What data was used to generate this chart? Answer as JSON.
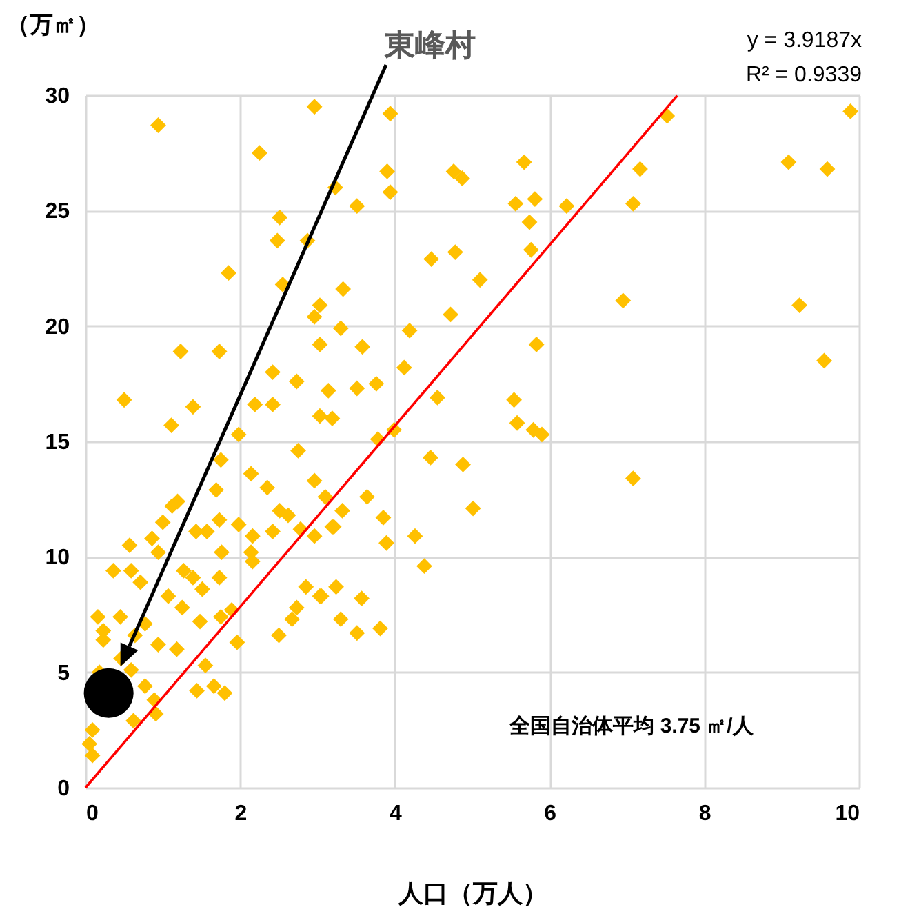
{
  "chart_data": {
    "type": "scatter",
    "xlabel": "人口（万人）",
    "ylabel": "（万㎡）",
    "xlim": [
      0,
      10
    ],
    "xticks": [
      0,
      2,
      4,
      6,
      8,
      10
    ],
    "ylim": [
      0,
      30
    ],
    "yticks": [
      0,
      5,
      10,
      15,
      20,
      25,
      30
    ],
    "grid": true,
    "marker": "diamond",
    "annotations": [
      "東峰村",
      "y = 3.9187x",
      "R² = 0.9339",
      "全国自治体平均  3.75 ㎡/人"
    ],
    "series": [
      {
        "color": "#ffc000",
        "x": [
          0.94,
          2.96,
          2.25,
          3.23,
          2.51,
          2.48,
          2.87,
          1.85,
          2.55,
          3.33,
          3.03,
          2.96,
          3.3,
          3.03,
          1.23,
          1.73,
          2.42,
          2.73,
          3.14,
          0.5,
          1.39,
          2.19,
          2.42,
          3.03,
          3.19,
          1.11,
          1.98,
          3.94,
          3.9,
          3.94,
          3.51,
          4.76,
          4.87,
          5.67,
          5.56,
          5.81,
          6.22,
          5.74,
          5.76,
          4.47,
          4.78,
          5.1,
          4.72,
          4.19,
          3.58,
          4.12,
          5.83,
          3.76,
          3.51,
          4.55,
          5.54,
          5.58,
          5.79,
          5.9,
          3.99,
          4.46,
          4.88,
          5.01,
          4.26,
          4.38,
          3.89,
          3.85,
          3.64,
          3.32,
          3.19,
          3.1,
          3.78,
          3.24,
          3.05,
          3.57,
          3.3,
          3.51,
          3.81,
          7.52,
          7.17,
          7.08,
          6.95,
          7.08,
          9.89,
          9.09,
          9.59,
          9.23,
          9.55,
          2.75,
          1.75,
          2.14,
          2.35,
          2.96,
          1.69,
          1.19,
          1.12,
          2.51,
          2.62,
          1.73,
          1.0,
          1.98,
          1.43,
          1.57,
          2.78,
          2.96,
          3.21,
          2.42,
          2.16,
          0.57,
          0.86,
          0.94,
          1.76,
          2.14,
          2.16,
          0.36,
          0.59,
          1.27,
          0.71,
          1.39,
          1.73,
          1.07,
          1.25,
          1.51,
          1.89,
          1.75,
          1.48,
          0.16,
          0.45,
          0.64,
          0.23,
          0.94,
          1.18,
          0.77,
          0.46,
          1.96,
          2.67,
          2.5,
          2.85,
          3.03,
          2.73,
          1.55,
          1.44,
          1.66,
          1.8,
          0.77,
          0.89,
          0.62,
          0.91,
          0.09,
          0.05,
          0.09,
          0.18,
          0.59,
          0.23
        ],
        "values": [
          28.7,
          29.5,
          27.5,
          26.0,
          24.7,
          23.7,
          23.7,
          22.3,
          21.8,
          21.6,
          20.9,
          20.4,
          19.9,
          19.2,
          18.9,
          18.9,
          18.0,
          17.6,
          17.2,
          16.8,
          16.5,
          16.6,
          16.6,
          16.1,
          16.0,
          15.7,
          15.3,
          29.2,
          26.7,
          25.8,
          25.2,
          26.7,
          26.4,
          27.1,
          25.3,
          25.5,
          25.2,
          24.5,
          23.3,
          22.9,
          23.2,
          22.0,
          20.5,
          19.8,
          19.1,
          18.2,
          19.2,
          17.5,
          17.3,
          16.9,
          16.8,
          15.8,
          15.5,
          15.3,
          15.5,
          14.3,
          14.0,
          12.1,
          10.9,
          9.6,
          10.6,
          11.7,
          12.6,
          12.0,
          11.3,
          12.6,
          15.1,
          8.7,
          8.3,
          8.2,
          7.3,
          6.7,
          6.9,
          29.1,
          26.8,
          25.3,
          21.1,
          13.4,
          29.3,
          27.1,
          26.8,
          20.9,
          18.5,
          14.6,
          14.2,
          13.6,
          13.0,
          13.3,
          12.9,
          12.4,
          12.2,
          12.0,
          11.8,
          11.6,
          11.5,
          11.4,
          11.1,
          11.1,
          11.2,
          10.9,
          11.3,
          11.1,
          10.9,
          10.5,
          10.8,
          10.2,
          10.2,
          10.2,
          9.8,
          9.4,
          9.4,
          9.4,
          8.9,
          9.1,
          9.1,
          8.3,
          7.8,
          8.6,
          7.7,
          7.4,
          7.2,
          7.4,
          7.4,
          6.6,
          6.4,
          6.2,
          6.0,
          7.1,
          5.6,
          6.3,
          7.3,
          6.6,
          8.7,
          8.3,
          7.8,
          5.3,
          4.2,
          4.4,
          4.1,
          4.4,
          3.8,
          2.9,
          3.2,
          2.5,
          1.9,
          1.4,
          5.0,
          5.1,
          6.8
        ]
      },
      {
        "color": "#000000",
        "marker": "circle",
        "x": [
          0.3
        ],
        "values": [
          4.1
        ]
      },
      {
        "type": "line",
        "marker": "none",
        "color": "#ff0000",
        "x": [
          0,
          7.65
        ],
        "values": [
          0,
          29.98
        ]
      }
    ]
  }
}
